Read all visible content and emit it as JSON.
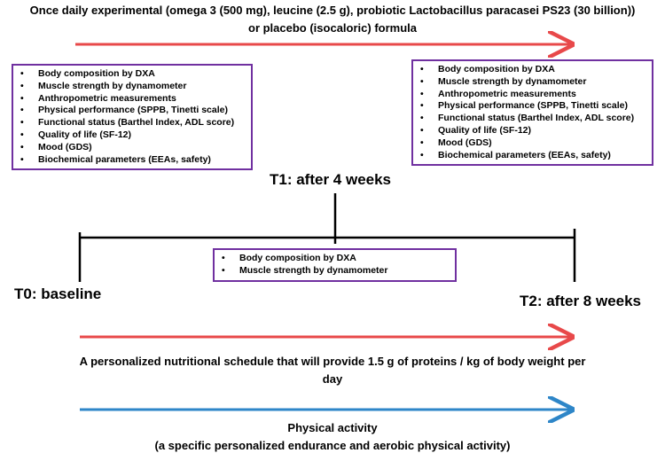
{
  "top_caption": {
    "line1": "Once daily experimental (omega 3 (500 mg), leucine (2.5 g), probiotic Lactobacillus paracasei PS23 (30 billion))",
    "line2": "or placebo (isocaloric)  formula"
  },
  "t0": {
    "label": "T0: baseline",
    "items": [
      "Body composition by DXA",
      "Muscle strength by dynamometer",
      "Anthropometric measurements",
      "Physical performance (SPPB, Tinetti scale)",
      "Functional status (Barthel Index, ADL score)",
      "Quality of life (SF-12)",
      "Mood (GDS)",
      "Biochemical parameters (EEAs, safety)"
    ]
  },
  "t1": {
    "label": "T1: after 4 weeks",
    "items": [
      "Body composition by DXA",
      "Muscle strength by dynamometer"
    ]
  },
  "t2": {
    "label": "T2: after 8 weeks",
    "items": [
      "Body composition by DXA",
      "Muscle strength by dynamometer",
      "Anthropometric measurements",
      "Physical performance (SPPB, Tinetti scale)",
      "Functional status (Barthel Index, ADL score)",
      "Quality of life (SF-12)",
      "Mood (GDS)",
      "Biochemical parameters (EEAs, safety)"
    ]
  },
  "nutrition_caption": "A personalized nutritional schedule that will provide 1.5 g of proteins / kg of body weight per day",
  "activity_caption": {
    "line1": "Physical activity",
    "line2": "(a specific personalized endurance and aerobic physical activity)"
  }
}
